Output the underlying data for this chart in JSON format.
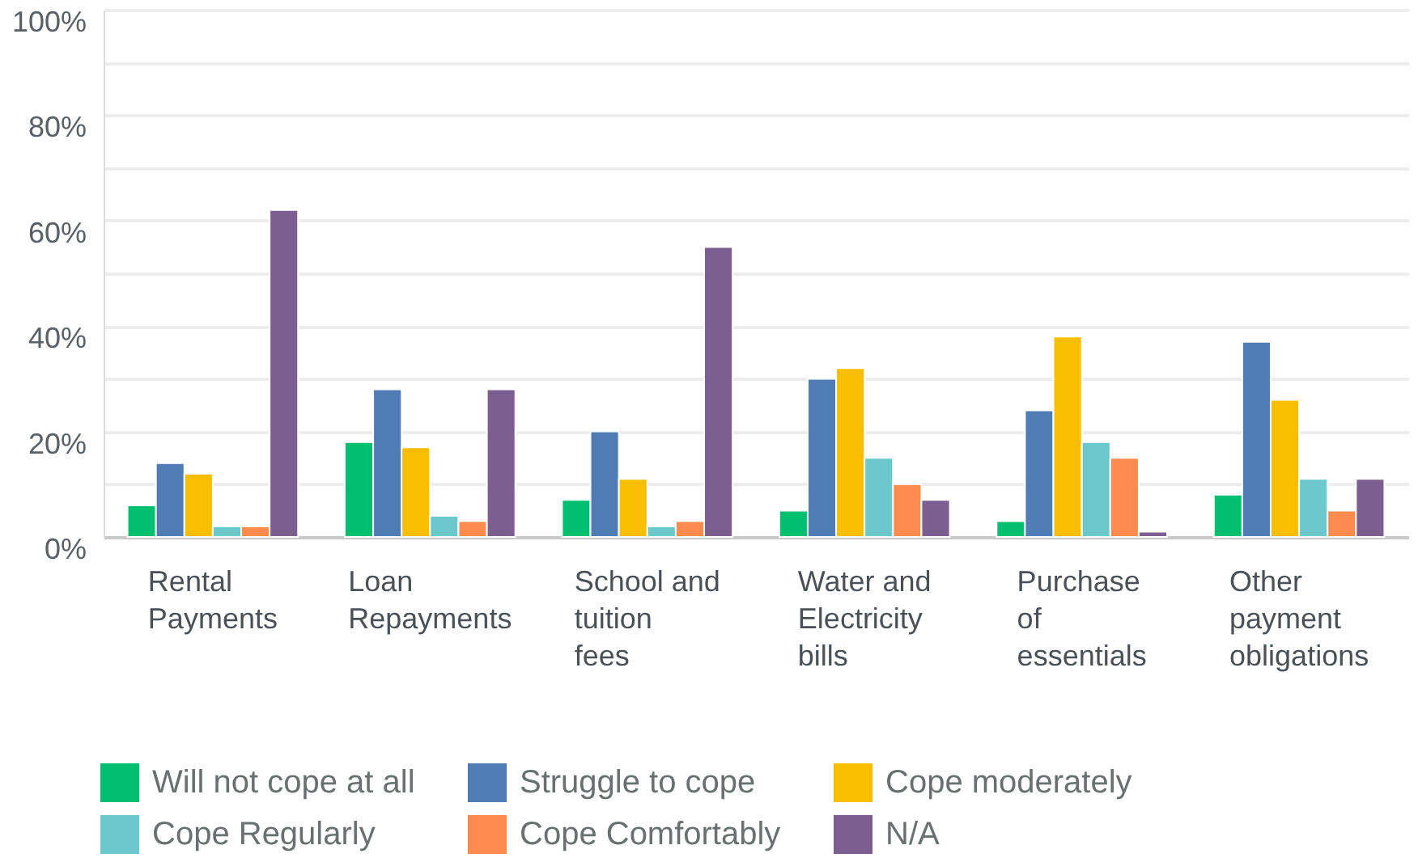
{
  "chart_data": {
    "type": "bar",
    "categories": [
      "Rental Payments",
      "Loan Repayments",
      "School and tuition fees",
      "Water and Electricity bills",
      "Purchase of essentials",
      "Other payment obligations"
    ],
    "series": [
      {
        "name": "Will not cope at all",
        "color": "#00bf6f",
        "values": [
          6,
          18,
          7,
          5,
          3,
          8
        ]
      },
      {
        "name": "Struggle to cope",
        "color": "#507cb6",
        "values": [
          14,
          28,
          20,
          30,
          24,
          37
        ]
      },
      {
        "name": "Cope moderately",
        "color": "#f9be00",
        "values": [
          12,
          17,
          11,
          32,
          38,
          26
        ]
      },
      {
        "name": "Cope Regularly",
        "color": "#6bc8cd",
        "values": [
          2,
          4,
          2,
          15,
          18,
          11
        ]
      },
      {
        "name": "Cope Comfortably",
        "color": "#ff8b4f",
        "values": [
          2,
          3,
          3,
          10,
          15,
          5
        ]
      },
      {
        "name": "N/A",
        "color": "#7d5e90",
        "values": [
          62,
          28,
          55,
          7,
          1,
          11
        ]
      }
    ],
    "ylim": [
      0,
      100
    ],
    "yticks": [
      {
        "value": 0,
        "label": "0%"
      },
      {
        "value": 10,
        "label": null
      },
      {
        "value": 20,
        "label": "20%"
      },
      {
        "value": 30,
        "label": null
      },
      {
        "value": 40,
        "label": "40%"
      },
      {
        "value": 50,
        "label": null
      },
      {
        "value": 60,
        "label": "60%"
      },
      {
        "value": 70,
        "label": null
      },
      {
        "value": 80,
        "label": "80%"
      },
      {
        "value": 90,
        "label": null
      },
      {
        "value": 100,
        "label": "100%"
      }
    ],
    "grid": "y",
    "legend": "bottom"
  }
}
